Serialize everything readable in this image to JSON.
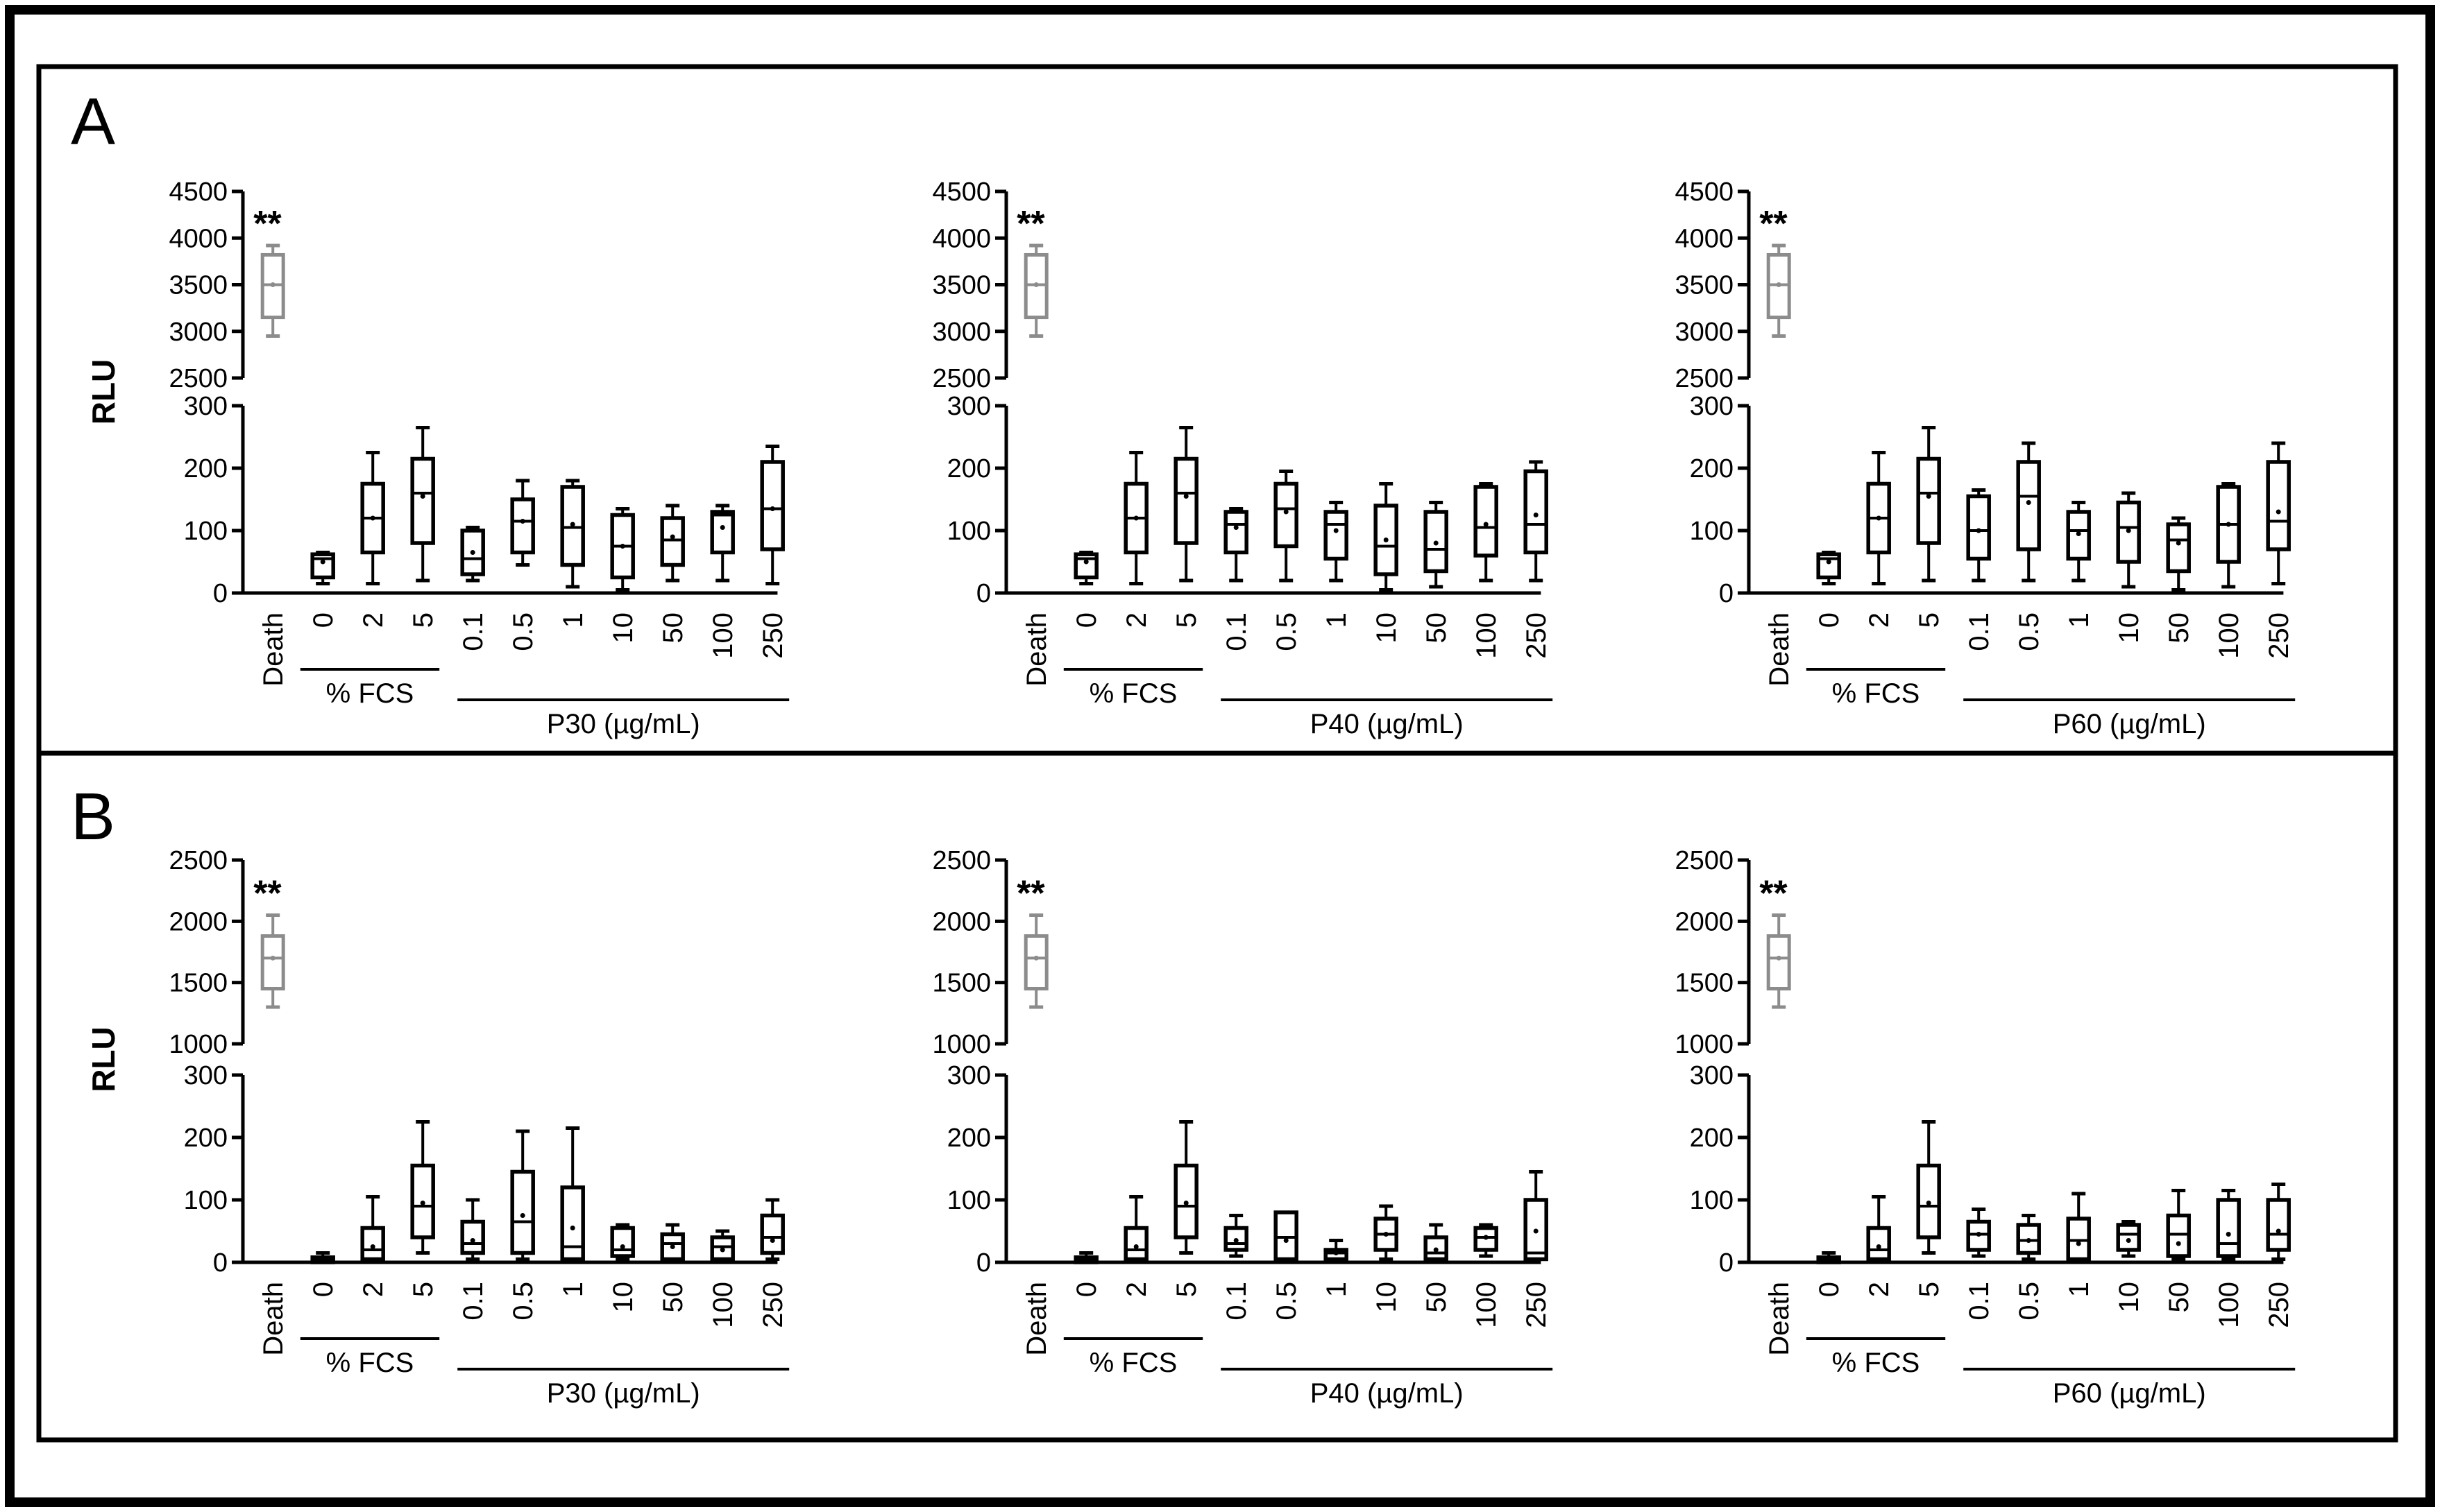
{
  "panels": [
    {
      "label": "A"
    },
    {
      "label": "B"
    }
  ],
  "chart_data": [
    {
      "type": "box",
      "panel": "A",
      "ylabel": "RLU",
      "annotation": "**",
      "group_labels": {
        "fcs": "% FCS",
        "treatment": "P30 (µg/mL)"
      },
      "categories": [
        "Death",
        "0",
        "2",
        "5",
        "0.1",
        "0.5",
        "1",
        "10",
        "50",
        "100",
        "250"
      ],
      "y_break": {
        "lower": [
          0,
          300
        ],
        "upper": [
          2500,
          4500
        ]
      },
      "yticks_lower": [
        0,
        100,
        200,
        300
      ],
      "yticks_upper": [
        2500,
        3000,
        3500,
        4000,
        4500
      ],
      "boxes": [
        {
          "min": 2950,
          "q1": 3150,
          "median": 3500,
          "q3": 3820,
          "max": 3920,
          "mean": 3500
        },
        {
          "min": 15,
          "q1": 25,
          "median": 55,
          "q3": 62,
          "max": 65,
          "mean": 50
        },
        {
          "min": 15,
          "q1": 65,
          "median": 120,
          "q3": 175,
          "max": 225,
          "mean": 120
        },
        {
          "min": 20,
          "q1": 80,
          "median": 160,
          "q3": 215,
          "max": 265,
          "mean": 155
        },
        {
          "min": 20,
          "q1": 30,
          "median": 55,
          "q3": 100,
          "max": 105,
          "mean": 65
        },
        {
          "min": 45,
          "q1": 65,
          "median": 115,
          "q3": 150,
          "max": 180,
          "mean": 115
        },
        {
          "min": 10,
          "q1": 45,
          "median": 105,
          "q3": 170,
          "max": 180,
          "mean": 110
        },
        {
          "min": 5,
          "q1": 25,
          "median": 75,
          "q3": 125,
          "max": 135,
          "mean": 75
        },
        {
          "min": 20,
          "q1": 45,
          "median": 85,
          "q3": 120,
          "max": 140,
          "mean": 90
        },
        {
          "min": 20,
          "q1": 65,
          "median": 125,
          "q3": 130,
          "max": 140,
          "mean": 105
        },
        {
          "min": 15,
          "q1": 70,
          "median": 135,
          "q3": 210,
          "max": 235,
          "mean": 135
        }
      ]
    },
    {
      "type": "box",
      "panel": "A",
      "ylabel": "",
      "annotation": "**",
      "group_labels": {
        "fcs": "% FCS",
        "treatment": "P40 (µg/mL)"
      },
      "categories": [
        "Death",
        "0",
        "2",
        "5",
        "0.1",
        "0.5",
        "1",
        "10",
        "50",
        "100",
        "250"
      ],
      "y_break": {
        "lower": [
          0,
          300
        ],
        "upper": [
          2500,
          4500
        ]
      },
      "yticks_lower": [
        0,
        100,
        200,
        300
      ],
      "yticks_upper": [
        2500,
        3000,
        3500,
        4000,
        4500
      ],
      "boxes": [
        {
          "min": 2950,
          "q1": 3150,
          "median": 3500,
          "q3": 3820,
          "max": 3920,
          "mean": 3500
        },
        {
          "min": 15,
          "q1": 25,
          "median": 55,
          "q3": 62,
          "max": 65,
          "mean": 50
        },
        {
          "min": 15,
          "q1": 65,
          "median": 120,
          "q3": 175,
          "max": 225,
          "mean": 120
        },
        {
          "min": 20,
          "q1": 80,
          "median": 160,
          "q3": 215,
          "max": 265,
          "mean": 155
        },
        {
          "min": 20,
          "q1": 65,
          "median": 110,
          "q3": 130,
          "max": 135,
          "mean": 105
        },
        {
          "min": 20,
          "q1": 75,
          "median": 135,
          "q3": 175,
          "max": 195,
          "mean": 130
        },
        {
          "min": 20,
          "q1": 55,
          "median": 110,
          "q3": 130,
          "max": 145,
          "mean": 100
        },
        {
          "min": 5,
          "q1": 30,
          "median": 75,
          "q3": 140,
          "max": 175,
          "mean": 85
        },
        {
          "min": 10,
          "q1": 35,
          "median": 70,
          "q3": 130,
          "max": 145,
          "mean": 80
        },
        {
          "min": 20,
          "q1": 60,
          "median": 105,
          "q3": 170,
          "max": 175,
          "mean": 110
        },
        {
          "min": 20,
          "q1": 65,
          "median": 110,
          "q3": 195,
          "max": 210,
          "mean": 125
        }
      ]
    },
    {
      "type": "box",
      "panel": "A",
      "ylabel": "",
      "annotation": "**",
      "group_labels": {
        "fcs": "% FCS",
        "treatment": "P60 (µg/mL)"
      },
      "categories": [
        "Death",
        "0",
        "2",
        "5",
        "0.1",
        "0.5",
        "1",
        "10",
        "50",
        "100",
        "250"
      ],
      "y_break": {
        "lower": [
          0,
          300
        ],
        "upper": [
          2500,
          4500
        ]
      },
      "yticks_lower": [
        0,
        100,
        200,
        300
      ],
      "yticks_upper": [
        2500,
        3000,
        3500,
        4000,
        4500
      ],
      "boxes": [
        {
          "min": 2950,
          "q1": 3150,
          "median": 3500,
          "q3": 3820,
          "max": 3920,
          "mean": 3500
        },
        {
          "min": 15,
          "q1": 25,
          "median": 55,
          "q3": 62,
          "max": 65,
          "mean": 50
        },
        {
          "min": 15,
          "q1": 65,
          "median": 120,
          "q3": 175,
          "max": 225,
          "mean": 120
        },
        {
          "min": 20,
          "q1": 80,
          "median": 160,
          "q3": 215,
          "max": 265,
          "mean": 155
        },
        {
          "min": 20,
          "q1": 55,
          "median": 100,
          "q3": 155,
          "max": 165,
          "mean": 100
        },
        {
          "min": 20,
          "q1": 70,
          "median": 155,
          "q3": 210,
          "max": 240,
          "mean": 145
        },
        {
          "min": 20,
          "q1": 55,
          "median": 100,
          "q3": 130,
          "max": 145,
          "mean": 95
        },
        {
          "min": 10,
          "q1": 50,
          "median": 105,
          "q3": 145,
          "max": 160,
          "mean": 100
        },
        {
          "min": 5,
          "q1": 35,
          "median": 85,
          "q3": 110,
          "max": 120,
          "mean": 80
        },
        {
          "min": 10,
          "q1": 50,
          "median": 110,
          "q3": 170,
          "max": 175,
          "mean": 110
        },
        {
          "min": 15,
          "q1": 70,
          "median": 115,
          "q3": 210,
          "max": 240,
          "mean": 130
        }
      ]
    },
    {
      "type": "box",
      "panel": "B",
      "ylabel": "RLU",
      "annotation": "**",
      "group_labels": {
        "fcs": "% FCS",
        "treatment": "P30 (µg/mL)"
      },
      "categories": [
        "Death",
        "0",
        "2",
        "5",
        "0.1",
        "0.5",
        "1",
        "10",
        "50",
        "100",
        "250"
      ],
      "y_break": {
        "lower": [
          0,
          300
        ],
        "upper": [
          1000,
          2500
        ]
      },
      "yticks_lower": [
        0,
        100,
        200,
        300
      ],
      "yticks_upper": [
        1000,
        1500,
        2000,
        2500
      ],
      "boxes": [
        {
          "min": 1300,
          "q1": 1450,
          "median": 1700,
          "q3": 1880,
          "max": 2050,
          "mean": 1700
        },
        {
          "min": 0,
          "q1": 0,
          "median": 3,
          "q3": 8,
          "max": 15,
          "mean": 5
        },
        {
          "min": 0,
          "q1": 5,
          "median": 20,
          "q3": 55,
          "max": 105,
          "mean": 25
        },
        {
          "min": 15,
          "q1": 40,
          "median": 90,
          "q3": 155,
          "max": 225,
          "mean": 95
        },
        {
          "min": 5,
          "q1": 15,
          "median": 30,
          "q3": 65,
          "max": 100,
          "mean": 35
        },
        {
          "min": 5,
          "q1": 15,
          "median": 65,
          "q3": 145,
          "max": 210,
          "mean": 75
        },
        {
          "min": 5,
          "q1": 5,
          "median": 25,
          "q3": 120,
          "max": 215,
          "mean": 55
        },
        {
          "min": 5,
          "q1": 10,
          "median": 20,
          "q3": 55,
          "max": 60,
          "mean": 25
        },
        {
          "min": 5,
          "q1": 5,
          "median": 30,
          "q3": 45,
          "max": 60,
          "mean": 25
        },
        {
          "min": 5,
          "q1": 5,
          "median": 25,
          "q3": 40,
          "max": 50,
          "mean": 20
        },
        {
          "min": 5,
          "q1": 15,
          "median": 40,
          "q3": 75,
          "max": 100,
          "mean": 35
        }
      ]
    },
    {
      "type": "box",
      "panel": "B",
      "ylabel": "",
      "annotation": "**",
      "group_labels": {
        "fcs": "% FCS",
        "treatment": "P40 (µg/mL)"
      },
      "categories": [
        "Death",
        "0",
        "2",
        "5",
        "0.1",
        "0.5",
        "1",
        "10",
        "50",
        "100",
        "250"
      ],
      "y_break": {
        "lower": [
          0,
          300
        ],
        "upper": [
          1000,
          2500
        ]
      },
      "yticks_lower": [
        0,
        100,
        200,
        300
      ],
      "yticks_upper": [
        1000,
        1500,
        2000,
        2500
      ],
      "boxes": [
        {
          "min": 1300,
          "q1": 1450,
          "median": 1700,
          "q3": 1880,
          "max": 2050,
          "mean": 1700
        },
        {
          "min": 0,
          "q1": 0,
          "median": 3,
          "q3": 8,
          "max": 15,
          "mean": 5
        },
        {
          "min": 0,
          "q1": 5,
          "median": 20,
          "q3": 55,
          "max": 105,
          "mean": 25
        },
        {
          "min": 15,
          "q1": 40,
          "median": 90,
          "q3": 155,
          "max": 225,
          "mean": 95
        },
        {
          "min": 10,
          "q1": 20,
          "median": 30,
          "q3": 55,
          "max": 75,
          "mean": 35
        },
        {
          "min": 5,
          "q1": 5,
          "median": 40,
          "q3": 80,
          "max": 80,
          "mean": 35
        },
        {
          "min": 5,
          "q1": 5,
          "median": 15,
          "q3": 20,
          "max": 35,
          "mean": 15
        },
        {
          "min": 5,
          "q1": 20,
          "median": 45,
          "q3": 70,
          "max": 90,
          "mean": 45
        },
        {
          "min": 5,
          "q1": 5,
          "median": 15,
          "q3": 40,
          "max": 60,
          "mean": 20
        },
        {
          "min": 10,
          "q1": 20,
          "median": 40,
          "q3": 55,
          "max": 60,
          "mean": 40
        },
        {
          "min": 5,
          "q1": 5,
          "median": 15,
          "q3": 100,
          "max": 145,
          "mean": 50
        }
      ]
    },
    {
      "type": "box",
      "panel": "B",
      "ylabel": "",
      "annotation": "**",
      "group_labels": {
        "fcs": "% FCS",
        "treatment": "P60 (µg/mL)"
      },
      "categories": [
        "Death",
        "0",
        "2",
        "5",
        "0.1",
        "0.5",
        "1",
        "10",
        "50",
        "100",
        "250"
      ],
      "y_break": {
        "lower": [
          0,
          300
        ],
        "upper": [
          1000,
          2500
        ]
      },
      "yticks_lower": [
        0,
        100,
        200,
        300
      ],
      "yticks_upper": [
        1000,
        1500,
        2000,
        2500
      ],
      "boxes": [
        {
          "min": 1300,
          "q1": 1450,
          "median": 1700,
          "q3": 1880,
          "max": 2050,
          "mean": 1700
        },
        {
          "min": 0,
          "q1": 0,
          "median": 3,
          "q3": 8,
          "max": 15,
          "mean": 5
        },
        {
          "min": 0,
          "q1": 5,
          "median": 20,
          "q3": 55,
          "max": 105,
          "mean": 25
        },
        {
          "min": 15,
          "q1": 40,
          "median": 90,
          "q3": 155,
          "max": 225,
          "mean": 95
        },
        {
          "min": 10,
          "q1": 20,
          "median": 45,
          "q3": 65,
          "max": 85,
          "mean": 45
        },
        {
          "min": 5,
          "q1": 15,
          "median": 35,
          "q3": 60,
          "max": 75,
          "mean": 35
        },
        {
          "min": 5,
          "q1": 5,
          "median": 35,
          "q3": 70,
          "max": 110,
          "mean": 30
        },
        {
          "min": 10,
          "q1": 20,
          "median": 45,
          "q3": 60,
          "max": 65,
          "mean": 35
        },
        {
          "min": 5,
          "q1": 10,
          "median": 45,
          "q3": 75,
          "max": 115,
          "mean": 30
        },
        {
          "min": 5,
          "q1": 10,
          "median": 30,
          "q3": 100,
          "max": 115,
          "mean": 45
        },
        {
          "min": 5,
          "q1": 20,
          "median": 45,
          "q3": 100,
          "max": 125,
          "mean": 50
        }
      ]
    }
  ]
}
